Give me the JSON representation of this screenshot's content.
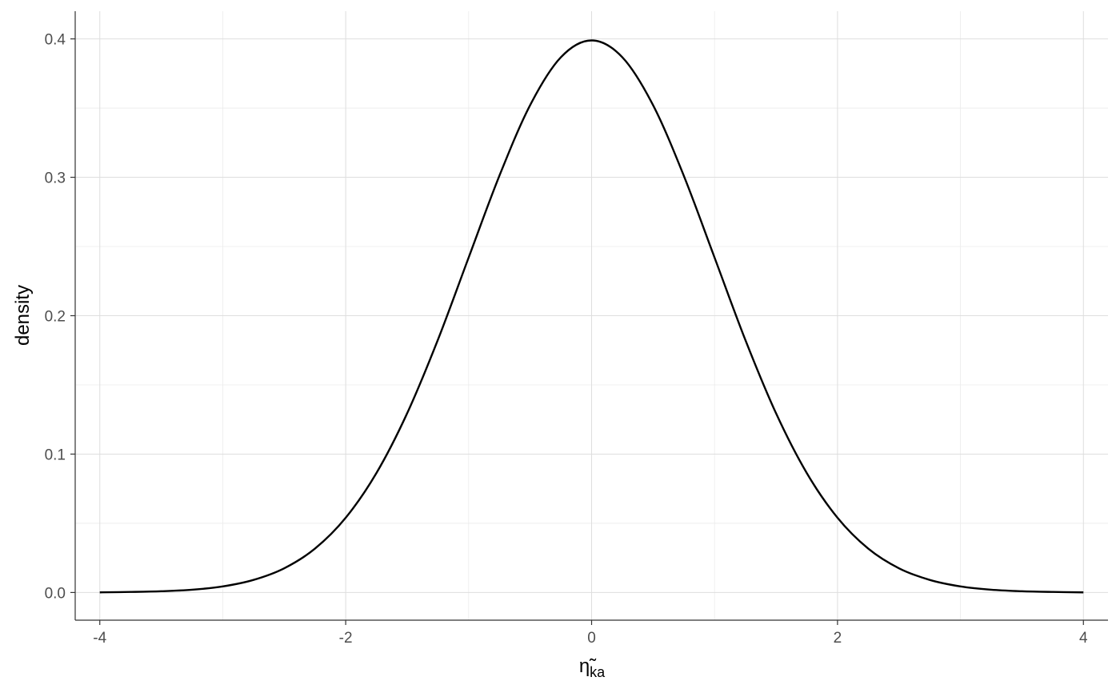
{
  "chart_data": {
    "type": "line",
    "title": "",
    "xlabel": "η̃",
    "xlabel_subscript": "ka",
    "ylabel": "density",
    "xlim": [
      -4.2,
      4.2
    ],
    "ylim": [
      -0.02,
      0.42
    ],
    "x_ticks": [
      -4,
      -2,
      0,
      2,
      4
    ],
    "x_tick_labels": [
      "-4",
      "-2",
      "0",
      "2",
      "4"
    ],
    "y_ticks": [
      0.0,
      0.1,
      0.2,
      0.3,
      0.4
    ],
    "y_tick_labels": [
      "0.0",
      "0.1",
      "0.2",
      "0.3",
      "0.4"
    ],
    "grid": true,
    "series": [
      {
        "color": "#000000",
        "x": [
          -4.0,
          -3.75,
          -3.5,
          -3.25,
          -3.0,
          -2.75,
          -2.5,
          -2.25,
          -2.0,
          -1.75,
          -1.5,
          -1.25,
          -1.0,
          -0.75,
          -0.5,
          -0.25,
          0.0,
          0.25,
          0.5,
          0.75,
          1.0,
          1.25,
          1.5,
          1.75,
          2.0,
          2.25,
          2.5,
          2.75,
          3.0,
          3.25,
          3.5,
          3.75,
          4.0
        ],
        "y": [
          0.0001,
          0.0004,
          0.0009,
          0.002,
          0.0044,
          0.0091,
          0.0175,
          0.0317,
          0.054,
          0.0863,
          0.1295,
          0.1826,
          0.242,
          0.3011,
          0.3521,
          0.3867,
          0.3989,
          0.3867,
          0.3521,
          0.3011,
          0.242,
          0.1826,
          0.1295,
          0.0863,
          0.054,
          0.0317,
          0.0175,
          0.0091,
          0.0044,
          0.002,
          0.0009,
          0.0004,
          0.0001
        ]
      }
    ]
  }
}
